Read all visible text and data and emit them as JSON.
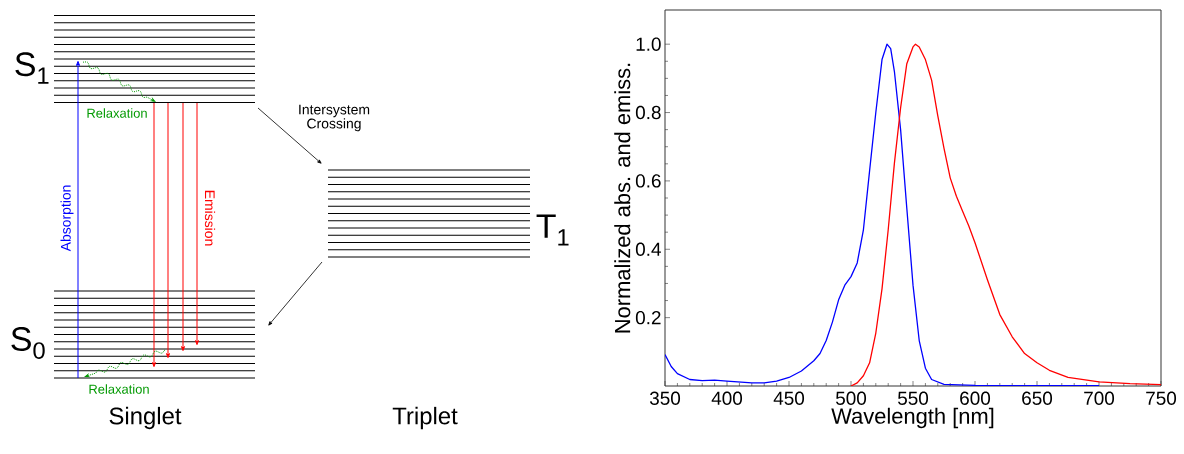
{
  "chart_data": [
    {
      "type": "other",
      "annotations": [
        "S$_{1}$",
        "S$_{0}$",
        "T$_{1}$",
        "Absorption",
        "Emission",
        "Relaxation",
        "Relaxation",
        "Intersystem Crossing",
        "Singlet",
        "Triplet"
      ]
    },
    {
      "type": "line",
      "xlabel": "Wavelength [nm]",
      "ylabel": "Normalized abs. and emiss.",
      "xlim": [
        350,
        750
      ],
      "ylim": [
        0,
        1.1
      ],
      "xticks": [
        350,
        400,
        450,
        500,
        550,
        600,
        650,
        700,
        750
      ],
      "yticks": [
        0.2,
        0.4,
        0.6,
        0.8,
        {
          "value": 1.0,
          "label": "1.0"
        }
      ],
      "series": [
        {
          "color": "#0000ff",
          "x": [
            350,
            355,
            360,
            370,
            380,
            390,
            400,
            420,
            430,
            440,
            450,
            460,
            470,
            475,
            480,
            485,
            490,
            495,
            500,
            505,
            510,
            515,
            520,
            525,
            529,
            532,
            535,
            540,
            545,
            550,
            555,
            560,
            565,
            575,
            600,
            650,
            700
          ],
          "values": [
            0.092,
            0.057,
            0.036,
            0.019,
            0.016,
            0.017,
            0.014,
            0.009,
            0.009,
            0.014,
            0.025,
            0.044,
            0.074,
            0.095,
            0.133,
            0.187,
            0.252,
            0.295,
            0.32,
            0.36,
            0.457,
            0.63,
            0.8,
            0.955,
            1.0,
            0.987,
            0.92,
            0.75,
            0.52,
            0.295,
            0.133,
            0.052,
            0.019,
            0.005,
            0.002,
            0.001,
            0.001
          ]
        },
        {
          "color": "#ff0000",
          "x": [
            500,
            505,
            510,
            515,
            520,
            525,
            530,
            535,
            540,
            545,
            550,
            552,
            555,
            560,
            565,
            570,
            575,
            580,
            585,
            590,
            595,
            600,
            610,
            620,
            630,
            640,
            650,
            660,
            675,
            700,
            725,
            750
          ],
          "values": [
            0.0,
            0.009,
            0.03,
            0.068,
            0.155,
            0.284,
            0.457,
            0.652,
            0.814,
            0.943,
            0.992,
            1.0,
            0.992,
            0.955,
            0.895,
            0.79,
            0.695,
            0.609,
            0.555,
            0.511,
            0.468,
            0.419,
            0.311,
            0.209,
            0.144,
            0.095,
            0.068,
            0.046,
            0.025,
            0.012,
            0.007,
            0.004
          ]
        }
      ]
    }
  ]
}
